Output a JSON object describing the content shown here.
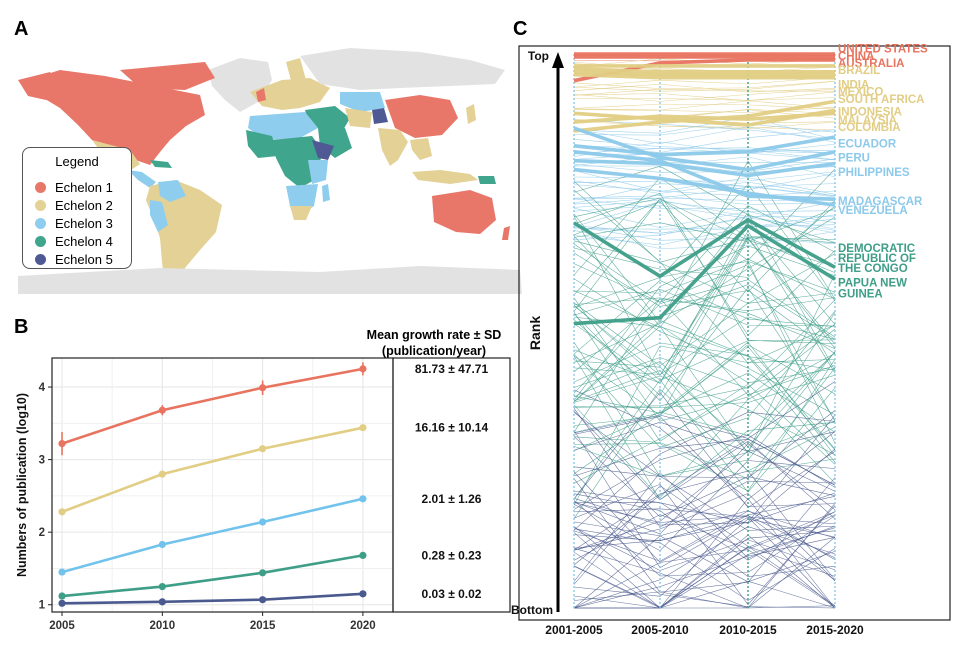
{
  "panels": {
    "a": "A",
    "b": "B",
    "c": "C"
  },
  "legend": {
    "title": "Legend",
    "items": [
      {
        "label": "Echelon 1",
        "color": "#e8776a"
      },
      {
        "label": "Echelon 2",
        "color": "#e3d196"
      },
      {
        "label": "Echelon 3",
        "color": "#8fcdee"
      },
      {
        "label": "Echelon 4",
        "color": "#3fa58c"
      },
      {
        "label": "Echelon 5",
        "color": "#4f5a95"
      }
    ]
  },
  "growth": {
    "title_line1": "Mean growth rate ± SD",
    "title_line2": "(publication/year)"
  },
  "chart_data": [
    {
      "type": "line",
      "panel": "B",
      "x": [
        2005,
        2010,
        2015,
        2020
      ],
      "xlim": [
        2004.5,
        2021.5
      ],
      "ylim": [
        0.9,
        4.4
      ],
      "yticks": [
        1,
        2,
        3,
        4
      ],
      "ylabel": "Numbers of publication (log10)",
      "series": [
        {
          "name": "Echelon 1",
          "color": "#e8735f",
          "values": [
            3.22,
            3.68,
            3.99,
            4.25
          ],
          "err": [
            0.16,
            0.07,
            0.1,
            0.09
          ],
          "growth": "81.73 ± 47.71"
        },
        {
          "name": "Echelon 2",
          "color": "#e2cd84",
          "values": [
            2.28,
            2.8,
            3.15,
            3.44
          ],
          "err": [
            0.03,
            0.03,
            0.03,
            0.03
          ],
          "growth": "16.16 ± 10.14"
        },
        {
          "name": "Echelon 3",
          "color": "#72c3ec",
          "values": [
            1.45,
            1.83,
            2.14,
            2.46
          ],
          "err": [
            0.02,
            0.02,
            0.02,
            0.02
          ],
          "growth": "2.01 ± 1.26"
        },
        {
          "name": "Echelon 4",
          "color": "#3e9e88",
          "values": [
            1.12,
            1.25,
            1.44,
            1.68
          ],
          "err": [
            0.01,
            0.01,
            0.01,
            0.01
          ],
          "growth": "0.28 ± 0.23"
        },
        {
          "name": "Echelon 5",
          "color": "#4b5a8e",
          "values": [
            1.02,
            1.04,
            1.07,
            1.15
          ],
          "err": [
            0.01,
            0.01,
            0.01,
            0.01
          ],
          "growth": "0.03 ± 0.02"
        }
      ]
    },
    {
      "type": "line",
      "panel": "C",
      "title": "Rank",
      "ylabel": "Rank",
      "top_label": "Top",
      "bottom_label": "Bottom",
      "categories": [
        "2001-2005",
        "2005-2010",
        "2010-2015",
        "2015-2020"
      ],
      "background": {
        "echelons": [
          {
            "color": "#e8735f",
            "count": 3,
            "spread": 0.3
          },
          {
            "color": "#e2cd84",
            "count": 22,
            "spread": 1.5
          },
          {
            "color": "#8cc9ea",
            "count": 38,
            "spread": 3
          },
          {
            "color": "#3e9e88",
            "count": 70,
            "spread": 9
          },
          {
            "color": "#4b5a8e",
            "count": 55,
            "spread": 6
          }
        ],
        "seed": 12345
      },
      "highlighted": [
        {
          "country": "UNITED STATES",
          "color": "#e8735f",
          "ranks": [
            1,
            1,
            1,
            1
          ]
        },
        {
          "country": "CHINA",
          "color": "#e8735f",
          "ranks": [
            2,
            2,
            2,
            2
          ]
        },
        {
          "country": "AUSTRALIA",
          "color": "#e8735f",
          "ranks": [
            10,
            4,
            3,
            3
          ]
        },
        {
          "country": "BRAZIL",
          "color": "#e2cd84",
          "ranks": [
            5,
            5,
            5,
            5
          ]
        },
        {
          "country": "INDIA",
          "color": "#e2cd84",
          "ranks": [
            6,
            7,
            7,
            7
          ]
        },
        {
          "country": "MEXICO",
          "color": "#e2cd84",
          "ranks": [
            7,
            8,
            8,
            8
          ]
        },
        {
          "country": "SOUTH AFRICA",
          "color": "#e2cd84",
          "ranks": [
            8,
            9,
            9,
            9
          ]
        },
        {
          "country": "INDONESIA",
          "color": "#e2cd84",
          "ranks": [
            27,
            24,
            22,
            17
          ]
        },
        {
          "country": "MALAYSIA",
          "color": "#e2cd84",
          "ranks": [
            21,
            23,
            25,
            20
          ]
        },
        {
          "country": "COLOMBIA",
          "color": "#e2cd84",
          "ranks": [
            24,
            22,
            23,
            21
          ]
        },
        {
          "country": "ECUADOR",
          "color": "#8cc9ea",
          "ranks": [
            32,
            35,
            34,
            29
          ]
        },
        {
          "country": "PERU",
          "color": "#8cc9ea",
          "ranks": [
            26,
            36,
            40,
            34
          ]
        },
        {
          "country": "PHILIPPINES",
          "color": "#8cc9ea",
          "ranks": [
            37,
            38,
            42,
            38
          ]
        },
        {
          "country": "MADAGASCAR",
          "color": "#8cc9ea",
          "ranks": [
            34,
            37,
            49,
            50
          ]
        },
        {
          "country": "VENEZUELA",
          "color": "#8cc9ea",
          "ranks": [
            40,
            43,
            48,
            52
          ]
        },
        {
          "country": "DEMOCRATIC REPUBLIC OF THE CONGO",
          "color": "#3e9e88",
          "ranks": [
            58,
            76,
            57,
            73
          ]
        },
        {
          "country": "PAPUA NEW GUINEA",
          "color": "#3e9e88",
          "ranks": [
            92,
            90,
            59,
            77
          ]
        }
      ],
      "labels": [
        {
          "text": "UNITED STATES",
          "color": "#e8735f",
          "rank": -1.2
        },
        {
          "text": "CHINA",
          "color": "#e8735f",
          "rank": 1.4
        },
        {
          "text": "AUSTRALIA",
          "color": "#e8735f",
          "rank": 3.7
        },
        {
          "text": "BRAZIL",
          "color": "#e2cd84",
          "rank": 6
        },
        {
          "text": "INDIA",
          "color": "#e2cd84",
          "rank": 11
        },
        {
          "text": "MEXICO",
          "color": "#e2cd84",
          "rank": 13.4
        },
        {
          "text": "SOUTH AFRICA",
          "color": "#e2cd84",
          "rank": 15.8
        },
        {
          "text": "INDONESIA",
          "color": "#e2cd84",
          "rank": 20
        },
        {
          "text": "MALAYSIA",
          "color": "#e2cd84",
          "rank": 23
        },
        {
          "text": "COLOMBIA",
          "color": "#e2cd84",
          "rank": 25.3
        },
        {
          "text": "ECUADOR",
          "color": "#8cc9ea",
          "rank": 30.8
        },
        {
          "text": "PERU",
          "color": "#8cc9ea",
          "rank": 35.6
        },
        {
          "text": "PHILIPPINES",
          "color": "#8cc9ea",
          "rank": 40.5
        },
        {
          "text": "MADAGASCAR",
          "color": "#8cc9ea",
          "rank": 50.2
        },
        {
          "text": "VENEZUELA",
          "color": "#8cc9ea",
          "rank": 53.4
        },
        {
          "text": "DEMOCRATIC",
          "color": "#3e9e88",
          "rank": 66.1
        },
        {
          "text": "REPUBLIC OF",
          "color": "#3e9e88",
          "rank": 69.5
        },
        {
          "text": "THE CONGO",
          "color": "#3e9e88",
          "rank": 72.9
        },
        {
          "text": "PAPUA NEW",
          "color": "#3e9e88",
          "rank": 77.8
        },
        {
          "text": "GUINEA",
          "color": "#3e9e88",
          "rank": 81.5
        }
      ],
      "rank_max": 188
    }
  ],
  "map": {
    "ocean": "#ffffff",
    "unknown": "#e2e2e2"
  }
}
